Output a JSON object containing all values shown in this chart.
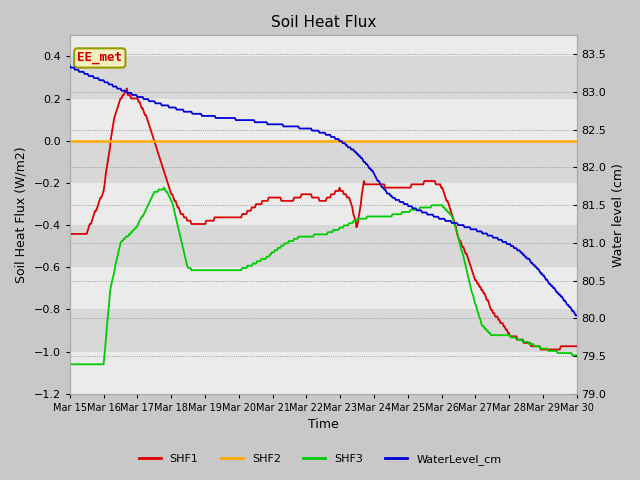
{
  "title": "Soil Heat Flux",
  "xlabel": "Time",
  "ylabel_left": "Soil Heat Flux (W/m2)",
  "ylabel_right": "Water level (cm)",
  "legend_label": "EE_met",
  "series_labels": [
    "SHF1",
    "SHF2",
    "SHF3",
    "WaterLevel_cm"
  ],
  "colors": {
    "SHF1": "#dd0000",
    "SHF2": "#ffaa00",
    "SHF3": "#00cc00",
    "WaterLevel_cm": "#0000dd",
    "band_light": "#ebebeb",
    "band_dark": "#d8d8d8",
    "fig_bg": "#c8c8c8"
  },
  "ylim_left": [
    -1.2,
    0.5
  ],
  "ylim_right": [
    79.0,
    83.75
  ],
  "yticks_left": [
    -1.2,
    -1.0,
    -0.8,
    -0.6,
    -0.4,
    -0.2,
    0.0,
    0.2,
    0.4
  ],
  "yticks_right": [
    79.0,
    79.5,
    80.0,
    80.5,
    81.0,
    81.5,
    82.0,
    82.5,
    83.0,
    83.5
  ],
  "x_ticks": [
    "Mar 15",
    "Mar 16",
    "Mar 17",
    "Mar 18",
    "Mar 19",
    "Mar 20",
    "Mar 21",
    "Mar 22",
    "Mar 23",
    "Mar 24",
    "Mar 25",
    "Mar 26",
    "Mar 27",
    "Mar 28",
    "Mar 29",
    "Mar 30"
  ],
  "n_points": 480
}
